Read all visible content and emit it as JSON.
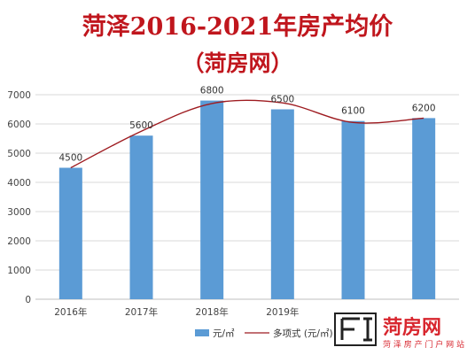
{
  "title": "菏泽2016-2021年房产均价",
  "subtitle": "（菏房网）",
  "chart_data": {
    "type": "bar",
    "categories": [
      "2016年",
      "2017年",
      "2018年",
      "2019年",
      "",
      ""
    ],
    "series": [
      {
        "name": "元/㎡",
        "type": "bar",
        "values": [
          4500,
          5600,
          6800,
          6500,
          6100,
          6200
        ],
        "color": "#5b9bd5"
      },
      {
        "name": "多项式 (元/㎡)",
        "type": "line",
        "values": [
          4500,
          5750,
          6700,
          6720,
          6050,
          6200
        ],
        "color": "#9e1b20"
      }
    ],
    "data_labels": [
      "4500",
      "5600",
      "6800",
      "6500",
      "6100",
      "6200"
    ],
    "yticks": [
      "0",
      "1000",
      "2000",
      "3000",
      "4000",
      "5000",
      "6000",
      "7000"
    ],
    "ylim": [
      0,
      7000
    ],
    "grid": true,
    "legend": "bottom"
  },
  "logo": {
    "brand": "菏房网",
    "tagline": "菏 泽 房 产 门 户 网 站"
  }
}
